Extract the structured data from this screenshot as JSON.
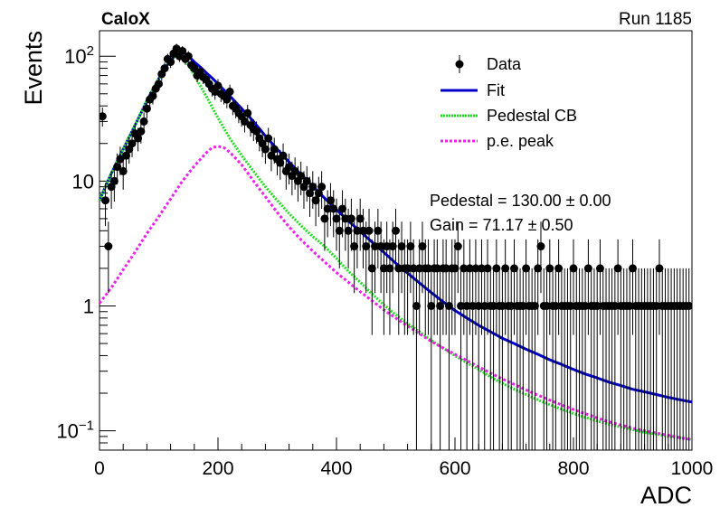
{
  "header": {
    "experiment": "CaloX",
    "run": "Run 1185"
  },
  "chart_data": {
    "type": "scatter",
    "title": "",
    "xlabel": "ADC",
    "ylabel": "Events",
    "xlim": [
      0,
      1000
    ],
    "ylim": [
      0.07,
      160
    ],
    "yscale": "log",
    "x_ticks": [
      "0",
      "200",
      "400",
      "600",
      "800",
      "1000"
    ],
    "y_ticks": [
      {
        "value": 0.1,
        "base": "10",
        "exp": "−1"
      },
      {
        "value": 1,
        "label": "1"
      },
      {
        "value": 10,
        "label": "10"
      },
      {
        "value": 100,
        "base": "10",
        "exp": "2"
      }
    ],
    "grid": false,
    "legend_position": "top-right",
    "legend": [
      {
        "label": "Data",
        "style": "marker"
      },
      {
        "label": "Fit",
        "style": "solid"
      },
      {
        "label": "Pedestal CB",
        "style": "dotted"
      },
      {
        "label": "p.e. peak",
        "style": "dotted"
      }
    ],
    "annotations": [
      "Pedestal = 130.00 ± 0.00",
      "Gain = 71.17 ± 0.50"
    ],
    "series": [
      {
        "name": "Data",
        "color": "#000000",
        "x": [
          5,
          10,
          15,
          20,
          25,
          30,
          35,
          40,
          45,
          50,
          55,
          60,
          65,
          70,
          75,
          80,
          85,
          90,
          95,
          100,
          105,
          110,
          115,
          120,
          125,
          130,
          135,
          140,
          145,
          150,
          155,
          160,
          165,
          170,
          175,
          180,
          185,
          190,
          195,
          200,
          205,
          210,
          215,
          220,
          225,
          230,
          235,
          240,
          245,
          250,
          255,
          260,
          265,
          270,
          275,
          280,
          285,
          290,
          295,
          300,
          305,
          310,
          315,
          320,
          325,
          330,
          335,
          340,
          345,
          350,
          355,
          360,
          365,
          370,
          375,
          380,
          385,
          390,
          395,
          400,
          405,
          410,
          415,
          420,
          425,
          430,
          435,
          440,
          445,
          450,
          455,
          460,
          465,
          470,
          475,
          480,
          485,
          490,
          495,
          500,
          505,
          510,
          515,
          520,
          525,
          530,
          535,
          540,
          545,
          550,
          555,
          560,
          565,
          570,
          575,
          580,
          585,
          590,
          595,
          600,
          605,
          610,
          615,
          620,
          625,
          630,
          635,
          640,
          645,
          650,
          655,
          660,
          665,
          670,
          675,
          680,
          685,
          690,
          695,
          700,
          705,
          710,
          715,
          720,
          725,
          730,
          735,
          740,
          745,
          750,
          755,
          760,
          765,
          770,
          775,
          780,
          785,
          790,
          795,
          800,
          805,
          810,
          815,
          820,
          825,
          830,
          835,
          840,
          845,
          850,
          855,
          860,
          865,
          870,
          875,
          880,
          885,
          890,
          895,
          900,
          905,
          910,
          915,
          920,
          925,
          930,
          935,
          940,
          945,
          950,
          955,
          960,
          965,
          970,
          975,
          980,
          985,
          990,
          995
        ],
        "y": [
          33,
          7,
          3,
          9,
          10,
          13,
          15,
          12,
          16,
          18,
          20,
          24,
          22,
          25,
          30,
          38,
          45,
          48,
          55,
          60,
          72,
          80,
          95,
          90,
          105,
          115,
          100,
          110,
          95,
          100,
          85,
          80,
          70,
          75,
          68,
          65,
          60,
          55,
          52,
          58,
          50,
          48,
          45,
          52,
          40,
          38,
          35,
          33,
          30,
          35,
          28,
          26,
          25,
          22,
          20,
          18,
          22,
          16,
          18,
          15,
          14,
          16,
          12,
          13,
          11,
          12,
          10,
          11,
          9,
          10,
          8,
          9,
          7,
          8,
          9,
          5,
          6,
          7,
          6,
          5,
          4,
          6,
          5,
          4,
          5,
          3,
          4,
          5,
          4,
          3,
          4,
          2,
          3,
          4,
          3,
          2,
          3,
          2,
          3,
          4,
          2,
          3,
          2,
          2,
          3,
          2,
          1,
          2,
          3,
          2,
          2,
          1,
          2,
          2,
          1,
          2,
          2,
          1,
          2,
          2,
          3,
          1,
          2,
          1,
          2,
          1,
          2,
          1,
          2,
          1,
          2,
          1,
          1,
          2,
          1,
          1,
          2,
          1,
          1,
          2,
          1,
          1,
          1,
          2,
          1,
          1,
          1,
          2,
          3,
          1,
          1,
          2,
          1,
          1,
          2,
          1,
          1,
          1,
          1,
          2,
          1,
          1,
          1,
          1,
          2,
          1,
          1,
          1,
          2,
          1,
          1,
          1,
          1,
          1,
          2,
          1,
          1,
          1,
          1,
          2,
          1,
          1,
          1,
          1,
          1,
          1,
          1,
          1,
          2,
          1,
          1,
          1,
          1,
          1,
          1,
          1,
          1,
          1,
          1
        ]
      },
      {
        "name": "Fit",
        "color": "#0000cc",
        "x": [
          0,
          10,
          20,
          30,
          40,
          50,
          60,
          70,
          80,
          90,
          100,
          110,
          120,
          130,
          140,
          150,
          160,
          170,
          180,
          190,
          200,
          220,
          240,
          260,
          280,
          300,
          320,
          340,
          360,
          380,
          400,
          420,
          440,
          460,
          480,
          500,
          520,
          540,
          560,
          580,
          600,
          620,
          640,
          660,
          680,
          700,
          720,
          740,
          760,
          780,
          800,
          820,
          840,
          860,
          880,
          900,
          920,
          940,
          960,
          980,
          1000
        ],
        "y": [
          7,
          9,
          11.5,
          14.5,
          18,
          22.5,
          28,
          35,
          44,
          54,
          66,
          80,
          93,
          103,
          108,
          100,
          90,
          82,
          74,
          67,
          60,
          48,
          38,
          30,
          23,
          18,
          14.2,
          11.3,
          9.1,
          7.3,
          5.9,
          4.8,
          3.95,
          3.25,
          2.68,
          2.2,
          1.83,
          1.53,
          1.28,
          1.08,
          0.92,
          0.8,
          0.7,
          0.62,
          0.55,
          0.5,
          0.45,
          0.41,
          0.37,
          0.34,
          0.31,
          0.285,
          0.265,
          0.245,
          0.23,
          0.215,
          0.205,
          0.195,
          0.185,
          0.177,
          0.17
        ]
      },
      {
        "name": "Pedestal CB",
        "color": "#22dd22",
        "x": [
          0,
          10,
          20,
          30,
          40,
          50,
          60,
          70,
          80,
          90,
          100,
          110,
          120,
          130,
          140,
          150,
          160,
          170,
          180,
          200,
          220,
          240,
          260,
          280,
          300,
          320,
          340,
          360,
          380,
          400,
          420,
          440,
          460,
          480,
          500,
          520,
          540,
          560,
          580,
          600,
          620,
          640,
          660,
          680,
          700,
          720,
          740,
          760,
          780,
          800,
          820,
          840,
          860,
          880,
          900,
          920,
          940,
          960,
          980,
          1000
        ],
        "y": [
          7,
          9,
          11.5,
          14.5,
          18,
          22.5,
          28,
          35,
          44,
          54,
          66,
          80,
          93,
          103,
          100,
          85,
          70,
          58,
          48,
          32,
          22,
          16,
          12,
          9,
          7,
          5.5,
          4.4,
          3.6,
          3,
          2.4,
          1.9,
          1.55,
          1.25,
          1.02,
          0.85,
          0.72,
          0.62,
          0.53,
          0.46,
          0.4,
          0.35,
          0.31,
          0.27,
          0.24,
          0.215,
          0.195,
          0.177,
          0.162,
          0.149,
          0.138,
          0.128,
          0.12,
          0.113,
          0.107,
          0.102,
          0.097,
          0.094,
          0.09,
          0.088,
          0.085
        ]
      },
      {
        "name": "p.e. peak",
        "color": "#ee22ee",
        "x": [
          0,
          20,
          40,
          60,
          80,
          100,
          120,
          140,
          160,
          180,
          190,
          200,
          210,
          220,
          240,
          260,
          280,
          300,
          320,
          340,
          360,
          380,
          400,
          420,
          440,
          460,
          480,
          500,
          520,
          540,
          560,
          580,
          600,
          620,
          640,
          660,
          680,
          700,
          720,
          740,
          760,
          780,
          800,
          820,
          840,
          860,
          880,
          900,
          920,
          940,
          960,
          980,
          1000
        ],
        "y": [
          1.05,
          1.4,
          1.95,
          2.7,
          3.8,
          5.2,
          7.2,
          10,
          13.2,
          16.8,
          18.5,
          19,
          18.5,
          17,
          13.5,
          10,
          7.5,
          5.6,
          4.3,
          3.4,
          2.75,
          2.25,
          1.85,
          1.55,
          1.3,
          1.1,
          0.93,
          0.8,
          0.69,
          0.6,
          0.52,
          0.46,
          0.41,
          0.365,
          0.325,
          0.29,
          0.26,
          0.235,
          0.212,
          0.193,
          0.176,
          0.161,
          0.148,
          0.137,
          0.127,
          0.118,
          0.111,
          0.105,
          0.1,
          0.096,
          0.092,
          0.088,
          0.085
        ]
      }
    ]
  }
}
